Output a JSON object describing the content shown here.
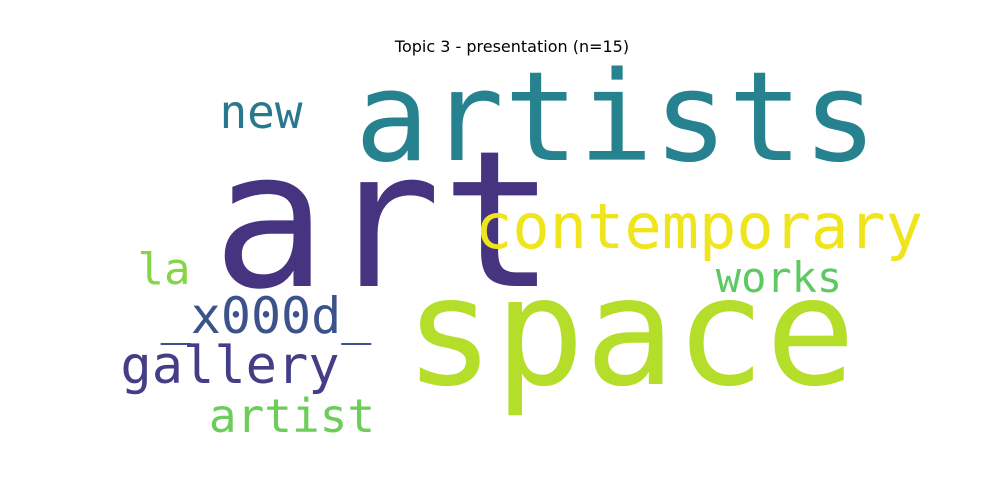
{
  "chart_data": {
    "type": "wordcloud",
    "title": "Topic 3 - presentation (n=15)",
    "words": [
      {
        "text": "art",
        "color": "#463480"
      },
      {
        "text": "artists",
        "color": "#26828e"
      },
      {
        "text": "space",
        "color": "#b5de2b"
      },
      {
        "text": "contemporary",
        "color": "#f0e51c"
      },
      {
        "text": "new",
        "color": "#2a788e"
      },
      {
        "text": "la",
        "color": "#86d549"
      },
      {
        "text": "works",
        "color": "#5ec962"
      },
      {
        "text": "_x000d_",
        "color": "#3b528b"
      },
      {
        "text": "gallery",
        "color": "#433e85"
      },
      {
        "text": "artist",
        "color": "#6ccd5a"
      }
    ]
  }
}
